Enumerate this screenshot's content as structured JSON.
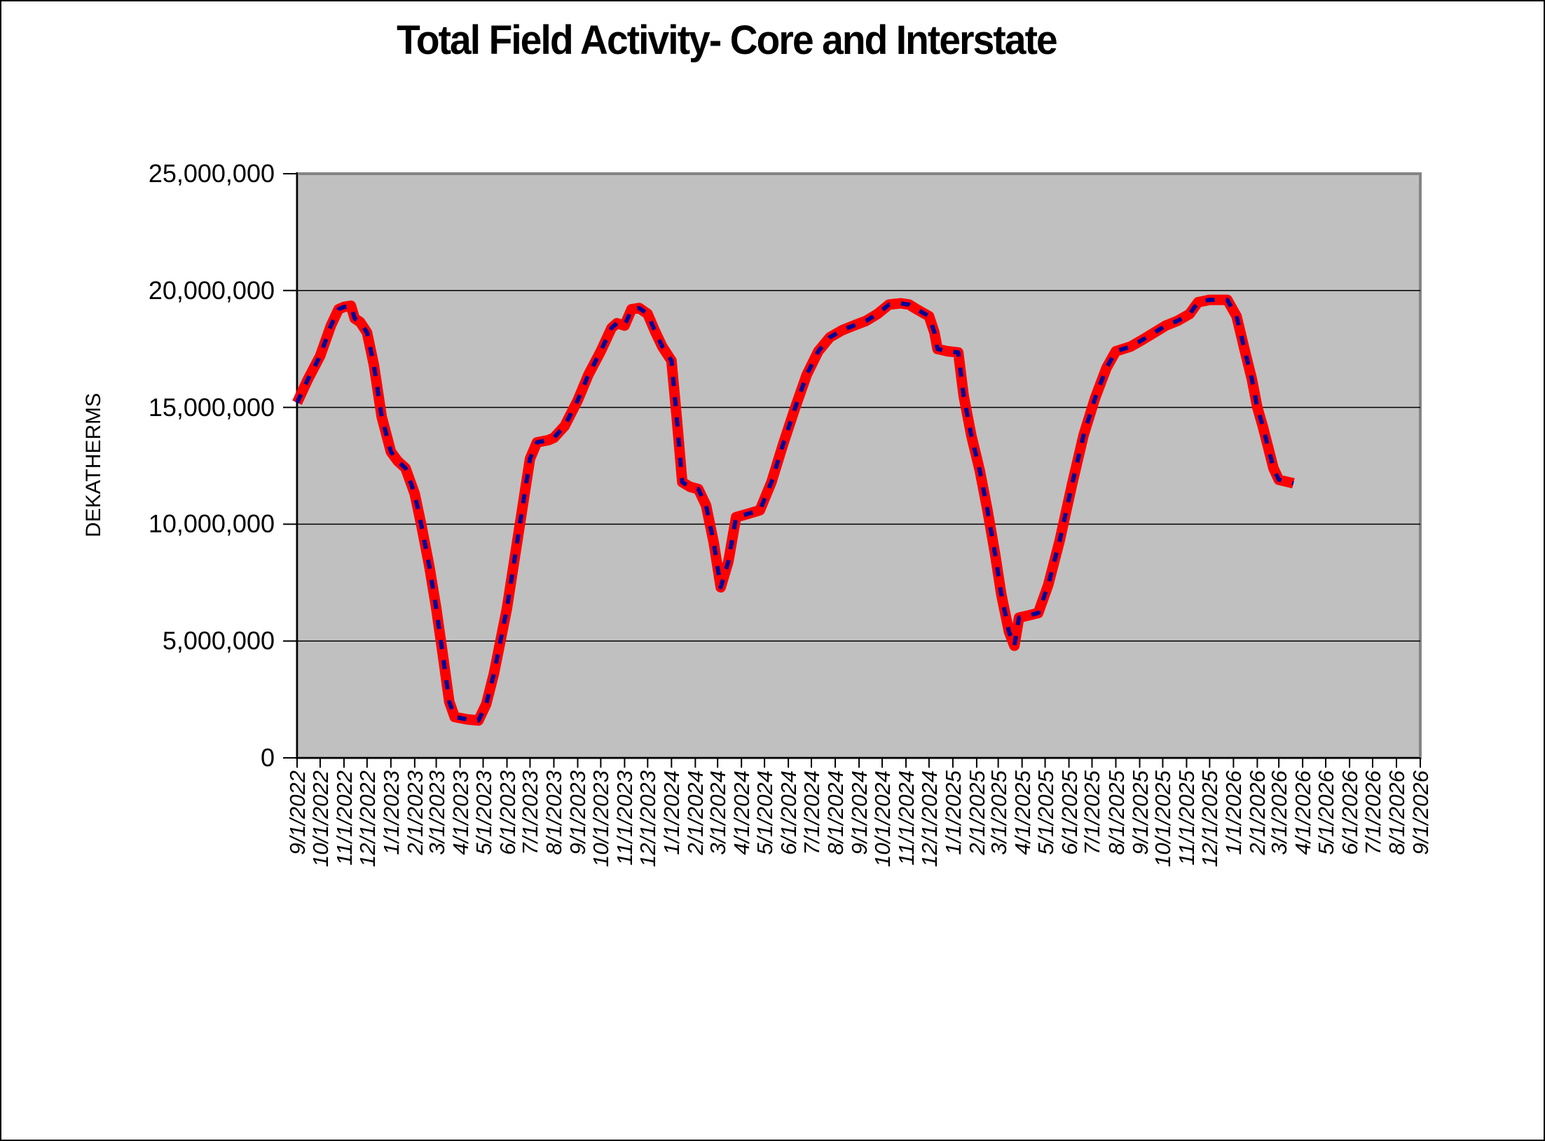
{
  "title": "Total Field Activity- Core and Interstate",
  "colors": {
    "series_red": "#FF0000",
    "series_blue_dashed": "#000099",
    "plot_background": "#C0C0C0",
    "plot_border": "#848484",
    "gridline": "#000000",
    "axis": "#000000"
  },
  "chart_data": {
    "type": "line",
    "title": "Total Field Activity- Core and Interstate",
    "xlabel": "",
    "ylabel": "DEKATHERMS",
    "ylim": [
      0,
      25000000
    ],
    "grid": "horizontal",
    "legend": "none",
    "y_ticks": {
      "values": [
        0,
        5000000,
        10000000,
        15000000,
        20000000,
        25000000
      ],
      "labels": [
        "0",
        "5,000,000",
        "10,000,000",
        "15,000,000",
        "20,000,000",
        "25,000,000"
      ]
    },
    "x_ticks": [
      "9/1/2022",
      "10/1/2022",
      "11/1/2022",
      "12/1/2022",
      "1/1/2023",
      "2/1/2023",
      "3/1/2023",
      "4/1/2023",
      "5/1/2023",
      "6/1/2023",
      "7/1/2023",
      "8/1/2023",
      "9/1/2023",
      "10/1/2023",
      "11/1/2023",
      "12/1/2023",
      "1/1/2024",
      "2/1/2024",
      "3/1/2024",
      "4/1/2024",
      "5/1/2024",
      "6/1/2024",
      "7/1/2024",
      "8/1/2024",
      "9/1/2024",
      "10/1/2024",
      "11/1/2024",
      "12/1/2024",
      "1/1/2025",
      "2/1/2025",
      "3/1/2025",
      "4/1/2025",
      "5/1/2025",
      "6/1/2025",
      "7/1/2025",
      "8/1/2025",
      "9/1/2025",
      "10/1/2025",
      "11/1/2025",
      "12/1/2025",
      "1/1/2026",
      "2/1/2026",
      "3/1/2026",
      "4/1/2026",
      "5/1/2026",
      "6/1/2026",
      "7/1/2026",
      "8/1/2026",
      "9/1/2026"
    ],
    "series": [
      {
        "name": "total-field-activity-solid",
        "color": "#FF0000",
        "style": "solid",
        "stroke_width": 15,
        "points": [
          [
            "9/1/2022",
            15200000
          ],
          [
            "9/15/2022",
            16200000
          ],
          [
            "10/1/2022",
            17200000
          ],
          [
            "10/15/2022",
            18500000
          ],
          [
            "10/25/2022",
            19200000
          ],
          [
            "11/1/2022",
            19300000
          ],
          [
            "11/10/2022",
            19350000
          ],
          [
            "11/15/2022",
            18800000
          ],
          [
            "11/22/2022",
            18650000
          ],
          [
            "12/1/2022",
            18200000
          ],
          [
            "12/10/2022",
            16800000
          ],
          [
            "12/20/2022",
            14600000
          ],
          [
            "1/1/2023",
            13100000
          ],
          [
            "1/10/2023",
            12700000
          ],
          [
            "1/20/2023",
            12400000
          ],
          [
            "2/1/2023",
            11300000
          ],
          [
            "2/10/2023",
            9900000
          ],
          [
            "2/20/2023",
            8200000
          ],
          [
            "3/1/2023",
            6400000
          ],
          [
            "3/10/2023",
            4300000
          ],
          [
            "3/18/2023",
            2400000
          ],
          [
            "3/25/2023",
            1750000
          ],
          [
            "4/10/2023",
            1650000
          ],
          [
            "4/25/2023",
            1600000
          ],
          [
            "5/5/2023",
            2300000
          ],
          [
            "5/15/2023",
            3600000
          ],
          [
            "6/1/2023",
            6400000
          ],
          [
            "6/15/2023",
            9400000
          ],
          [
            "7/1/2023",
            12800000
          ],
          [
            "7/10/2023",
            13500000
          ],
          [
            "7/25/2023",
            13600000
          ],
          [
            "8/1/2023",
            13700000
          ],
          [
            "8/15/2023",
            14200000
          ],
          [
            "9/1/2023",
            15300000
          ],
          [
            "9/15/2023",
            16400000
          ],
          [
            "10/1/2023",
            17400000
          ],
          [
            "10/15/2023",
            18400000
          ],
          [
            "10/22/2023",
            18600000
          ],
          [
            "11/1/2023",
            18500000
          ],
          [
            "11/10/2023",
            19200000
          ],
          [
            "11/20/2023",
            19250000
          ],
          [
            "12/1/2023",
            19000000
          ],
          [
            "12/10/2023",
            18300000
          ],
          [
            "12/20/2023",
            17600000
          ],
          [
            "1/1/2024",
            17000000
          ],
          [
            "1/8/2024",
            14500000
          ],
          [
            "1/15/2024",
            11800000
          ],
          [
            "1/25/2024",
            11600000
          ],
          [
            "2/5/2024",
            11500000
          ],
          [
            "2/15/2024",
            10800000
          ],
          [
            "2/25/2024",
            9200000
          ],
          [
            "3/5/2024",
            7300000
          ],
          [
            "3/15/2024",
            8400000
          ],
          [
            "3/25/2024",
            10300000
          ],
          [
            "4/10/2024",
            10450000
          ],
          [
            "4/25/2024",
            10600000
          ],
          [
            "5/10/2024",
            11800000
          ],
          [
            "5/25/2024",
            13400000
          ],
          [
            "6/10/2024",
            15000000
          ],
          [
            "6/25/2024",
            16400000
          ],
          [
            "7/10/2024",
            17400000
          ],
          [
            "7/25/2024",
            18000000
          ],
          [
            "8/10/2024",
            18300000
          ],
          [
            "8/25/2024",
            18500000
          ],
          [
            "9/10/2024",
            18700000
          ],
          [
            "9/25/2024",
            19000000
          ],
          [
            "10/10/2024",
            19400000
          ],
          [
            "10/25/2024",
            19450000
          ],
          [
            "11/5/2024",
            19400000
          ],
          [
            "11/15/2024",
            19200000
          ],
          [
            "12/1/2024",
            18900000
          ],
          [
            "12/8/2024",
            18200000
          ],
          [
            "12/12/2024",
            17500000
          ],
          [
            "12/25/2024",
            17400000
          ],
          [
            "1/8/2025",
            17350000
          ],
          [
            "1/15/2025",
            15500000
          ],
          [
            "1/25/2025",
            13800000
          ],
          [
            "2/5/2025",
            12300000
          ],
          [
            "2/15/2025",
            10600000
          ],
          [
            "2/25/2025",
            8700000
          ],
          [
            "3/5/2025",
            7000000
          ],
          [
            "3/15/2025",
            5400000
          ],
          [
            "3/22/2025",
            4800000
          ],
          [
            "3/28/2025",
            6000000
          ],
          [
            "4/10/2025",
            6100000
          ],
          [
            "4/22/2025",
            6200000
          ],
          [
            "5/5/2025",
            7400000
          ],
          [
            "5/20/2025",
            9300000
          ],
          [
            "6/5/2025",
            11700000
          ],
          [
            "6/20/2025",
            13800000
          ],
          [
            "7/5/2025",
            15400000
          ],
          [
            "7/20/2025",
            16700000
          ],
          [
            "8/1/2025",
            17400000
          ],
          [
            "8/20/2025",
            17600000
          ],
          [
            "9/5/2025",
            17900000
          ],
          [
            "9/20/2025",
            18200000
          ],
          [
            "10/5/2025",
            18500000
          ],
          [
            "10/20/2025",
            18700000
          ],
          [
            "11/5/2025",
            19000000
          ],
          [
            "11/16/2025",
            19500000
          ],
          [
            "12/1/2025",
            19600000
          ],
          [
            "12/24/2025",
            19600000
          ],
          [
            "1/5/2026",
            18900000
          ],
          [
            "1/16/2026",
            17400000
          ],
          [
            "1/25/2026",
            16200000
          ],
          [
            "2/1/2026",
            15000000
          ],
          [
            "2/8/2026",
            14200000
          ],
          [
            "2/15/2026",
            13300000
          ],
          [
            "2/22/2026",
            12400000
          ],
          [
            "3/1/2026",
            11900000
          ],
          [
            "3/20/2026",
            11750000
          ]
        ]
      },
      {
        "name": "total-field-activity-dashed-overlay",
        "color": "#000099",
        "style": "dashed",
        "stroke_width": 6,
        "points_ref": 0
      }
    ]
  }
}
